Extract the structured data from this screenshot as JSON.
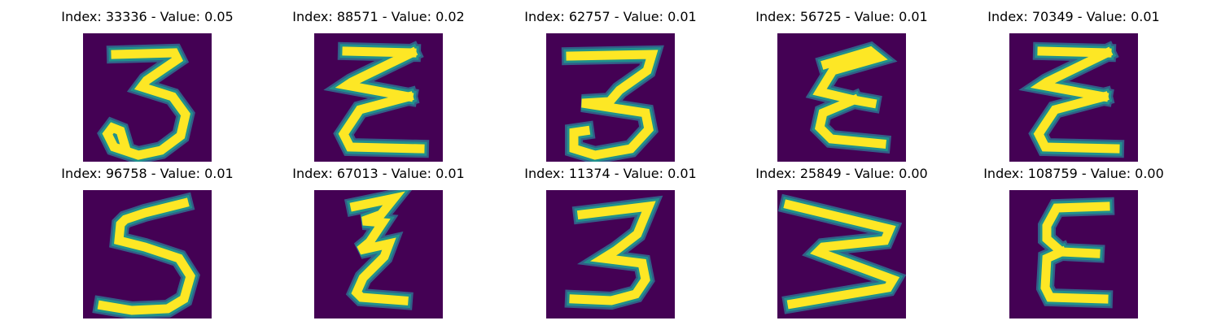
{
  "colors": {
    "background": "#440154",
    "low": "#31688e",
    "mid": "#21918c",
    "high": "#fde725"
  },
  "panels": [
    {
      "label": "Index: 33336 - Value: 0.05",
      "glyph": "3-open-top-curl-bottom"
    },
    {
      "label": "Index: 88571 - Value: 0.02",
      "glyph": "sigma-E"
    },
    {
      "label": "Index: 62757 - Value: 0.01",
      "glyph": "3-flat-top"
    },
    {
      "label": "Index: 56725 - Value: 0.01",
      "glyph": "curly-E"
    },
    {
      "label": "Index: 70349 - Value: 0.01",
      "glyph": "sigma-E"
    },
    {
      "label": "Index: 96758 - Value: 0.01",
      "glyph": "5"
    },
    {
      "label": "Index: 67013 - Value: 0.01",
      "glyph": "zigzag-E"
    },
    {
      "label": "Index: 11374 - Value: 0.01",
      "glyph": "3"
    },
    {
      "label": "Index: 25849 - Value: 0.00",
      "glyph": "rotated-W"
    },
    {
      "label": "Index: 108759 - Value: 0.00",
      "glyph": "E"
    }
  ]
}
